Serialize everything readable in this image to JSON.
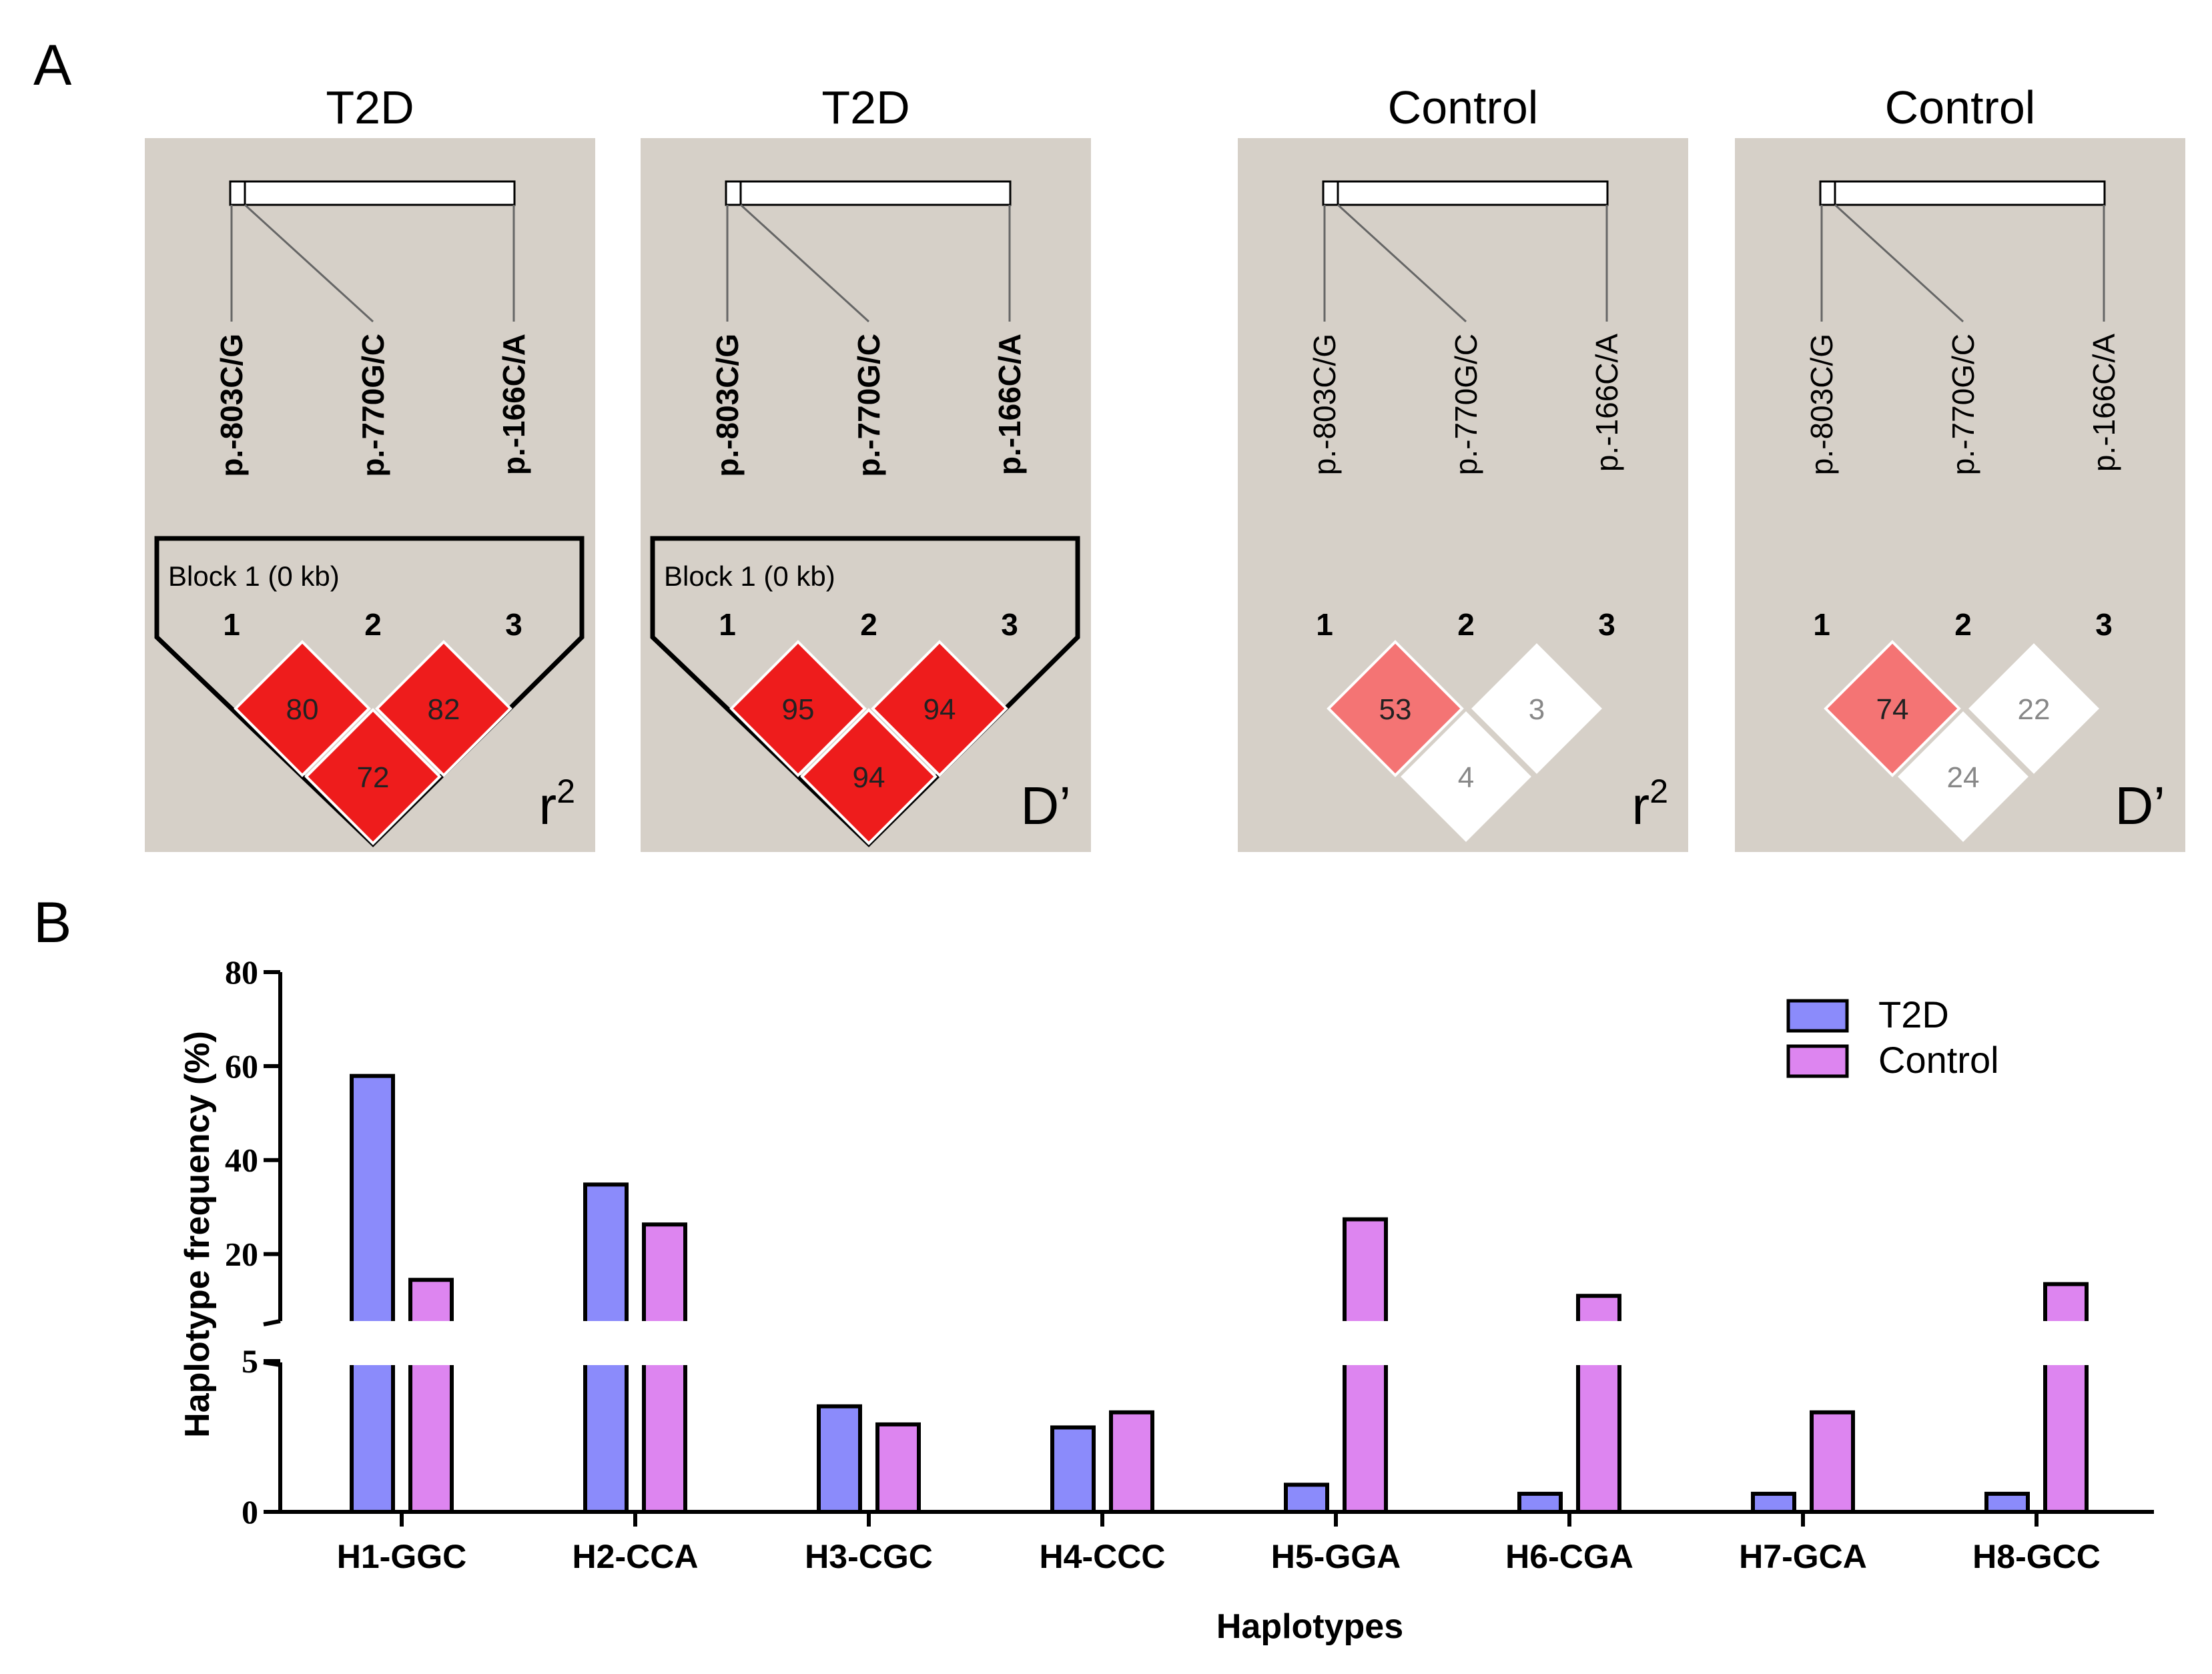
{
  "panel_a": {
    "letter": "A",
    "ld_plots": [
      {
        "title": "T2D",
        "markers": [
          "p.-803C/G",
          "p.-770G/C",
          "p.-166C/A"
        ],
        "bold": true,
        "block_label": "Block 1 (0 kb)",
        "marker_indices": [
          "1",
          "2",
          "3"
        ],
        "values": {
          "v12": "80",
          "v23": "82",
          "v13": "72"
        },
        "measure_base": "r",
        "measure_sup": "2",
        "fills": {
          "v12": "#ee1c1c",
          "v23": "#ee1c1c",
          "v13": "#ee1c1c"
        }
      },
      {
        "title": "T2D",
        "markers": [
          "p.-803C/G",
          "p.-770G/C",
          "p.-166C/A"
        ],
        "bold": true,
        "block_label": "Block 1 (0 kb)",
        "marker_indices": [
          "1",
          "2",
          "3"
        ],
        "values": {
          "v12": "95",
          "v23": "94",
          "v13": "94"
        },
        "measure_base": "D’",
        "measure_sup": "",
        "fills": {
          "v12": "#ee1c1c",
          "v23": "#ee1c1c",
          "v13": "#ee1c1c"
        }
      },
      {
        "title": "Control",
        "markers": [
          "p.-803C/G",
          "p.-770G/C",
          "p.-166C/A"
        ],
        "bold": false,
        "block_label": "",
        "marker_indices": [
          "1",
          "2",
          "3"
        ],
        "values": {
          "v12": "53",
          "v23": "3",
          "v13": "4"
        },
        "measure_base": "r",
        "measure_sup": "2",
        "fills": {
          "v12": "#f47474",
          "v23": "#ffffff",
          "v13": "#ffffff"
        }
      },
      {
        "title": "Control",
        "markers": [
          "p.-803C/G",
          "p.-770G/C",
          "p.-166C/A"
        ],
        "bold": false,
        "block_label": "",
        "marker_indices": [
          "1",
          "2",
          "3"
        ],
        "values": {
          "v12": "74",
          "v23": "22",
          "v13": "24"
        },
        "measure_base": "D’",
        "measure_sup": "",
        "fills": {
          "v12": "#f47474",
          "v23": "#ffffff",
          "v13": "#ffffff"
        }
      }
    ]
  },
  "panel_b": {
    "letter": "B"
  },
  "chart_data": {
    "type": "bar",
    "title": "",
    "xlabel": "Haplotypes",
    "ylabel": "Haplotype frequency (%)",
    "categories": [
      "H1-GGC",
      "H2-CCA",
      "H3-CGC",
      "H4-CCC",
      "H5-GGA",
      "H6-CGA",
      "H7-GCA",
      "H8-GCC"
    ],
    "series": [
      {
        "name": "T2D",
        "color": "#8b8bfb",
        "values": [
          57.9,
          34.8,
          3.5,
          2.8,
          0.9,
          0.6,
          0.6,
          0.6
        ]
      },
      {
        "name": "Control",
        "color": "#dd85f0",
        "values": [
          14.5,
          26.3,
          2.9,
          3.3,
          27.4,
          11.1,
          3.3,
          13.6
        ]
      }
    ],
    "y_axis": {
      "broken": true,
      "lower_range": [
        0,
        5
      ],
      "upper_range": [
        5,
        80
      ],
      "lower_ticks": [
        "0",
        "5"
      ],
      "upper_ticks": [
        "20",
        "40",
        "60",
        "80"
      ]
    },
    "legend": "top-right"
  }
}
